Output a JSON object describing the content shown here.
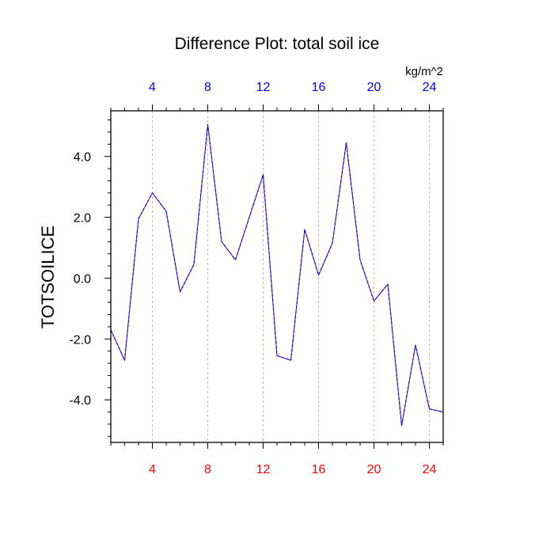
{
  "chart_data": {
    "type": "line",
    "title": "Difference Plot: total soil ice",
    "units_label": "kg/m^2",
    "ylabel": "TOTSOILICE",
    "xlabel": "",
    "xlim": [
      1,
      25
    ],
    "ylim": [
      -5.4,
      5.5
    ],
    "x_ticks": [
      4,
      8,
      12,
      16,
      20,
      24
    ],
    "x_tick_labels": [
      "4",
      "8",
      "12",
      "16",
      "20",
      "24"
    ],
    "y_ticks": [
      -4,
      -2,
      0,
      2,
      4
    ],
    "y_tick_labels": [
      "-4.0",
      "-2.0",
      "0.0",
      "2.0",
      "4.0"
    ],
    "grid": "vertical dashed at major x ticks",
    "series": [
      {
        "name": "TOTSOILICE difference",
        "style": "dashed",
        "x": [
          1,
          2,
          3,
          4,
          5,
          6,
          7,
          8,
          9,
          10,
          11,
          12,
          13,
          14,
          15,
          16,
          17,
          18,
          19,
          20,
          21,
          22,
          23,
          24,
          25
        ],
        "values": [
          -1.7,
          -2.7,
          1.95,
          2.8,
          2.2,
          -0.45,
          0.45,
          5.05,
          1.2,
          0.6,
          2.0,
          3.4,
          -2.55,
          -2.7,
          1.6,
          0.1,
          1.15,
          4.45,
          0.6,
          -0.75,
          -0.2,
          -4.85,
          -2.2,
          -4.3,
          -4.4
        ]
      }
    ]
  },
  "colors": {
    "bottom_axis_labels": "#ff0000",
    "top_axis_labels": "#0000ff",
    "line": "#5a1a9e",
    "line_dash": "#0000ff"
  }
}
